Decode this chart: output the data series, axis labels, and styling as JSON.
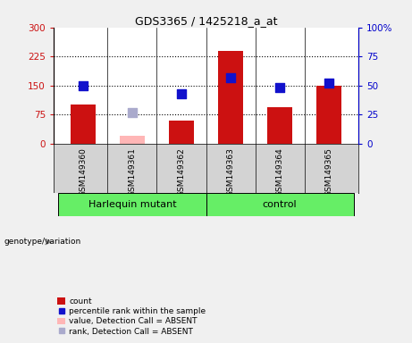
{
  "title": "GDS3365 / 1425218_a_at",
  "samples": [
    "GSM149360",
    "GSM149361",
    "GSM149362",
    "GSM149363",
    "GSM149364",
    "GSM149365"
  ],
  "bar_values": [
    100,
    null,
    60,
    240,
    95,
    150
  ],
  "bar_absent_values": [
    null,
    20,
    null,
    null,
    null,
    null
  ],
  "rank_values": [
    50,
    null,
    43,
    57,
    48,
    52
  ],
  "rank_absent_values": [
    null,
    27,
    null,
    null,
    null,
    null
  ],
  "bar_color": "#cc1111",
  "bar_absent_color": "#ffb6b6",
  "rank_color": "#1111cc",
  "rank_absent_color": "#aaaacc",
  "ylim_left": [
    0,
    300
  ],
  "ylim_right": [
    0,
    100
  ],
  "yticks_left": [
    0,
    75,
    150,
    225,
    300
  ],
  "yticks_right": [
    0,
    25,
    50,
    75,
    100
  ],
  "ytick_labels_left": [
    "0",
    "75",
    "150",
    "225",
    "300"
  ],
  "ytick_labels_right": [
    "0",
    "25",
    "50",
    "75",
    "100%"
  ],
  "hline_values": [
    75,
    150,
    225
  ],
  "bar_width": 0.5,
  "rank_marker_size": 45,
  "legend_items": [
    {
      "label": "count",
      "color": "#cc1111",
      "type": "bar"
    },
    {
      "label": "percentile rank within the sample",
      "color": "#1111cc",
      "type": "marker"
    },
    {
      "label": "value, Detection Call = ABSENT",
      "color": "#ffb6b6",
      "type": "bar"
    },
    {
      "label": "rank, Detection Call = ABSENT",
      "color": "#aaaacc",
      "type": "marker"
    }
  ],
  "left_yaxis_color": "#cc1111",
  "right_yaxis_color": "#0000cc",
  "plot_bg_color": "#ffffff",
  "outer_bg_color": "#f0f0f0",
  "label_area_color": "#d3d3d3",
  "group_area_color": "#66ee66",
  "groups_info": [
    {
      "label": "Harlequin mutant",
      "start": 0,
      "end": 2
    },
    {
      "label": "control",
      "start": 3,
      "end": 5
    }
  ]
}
